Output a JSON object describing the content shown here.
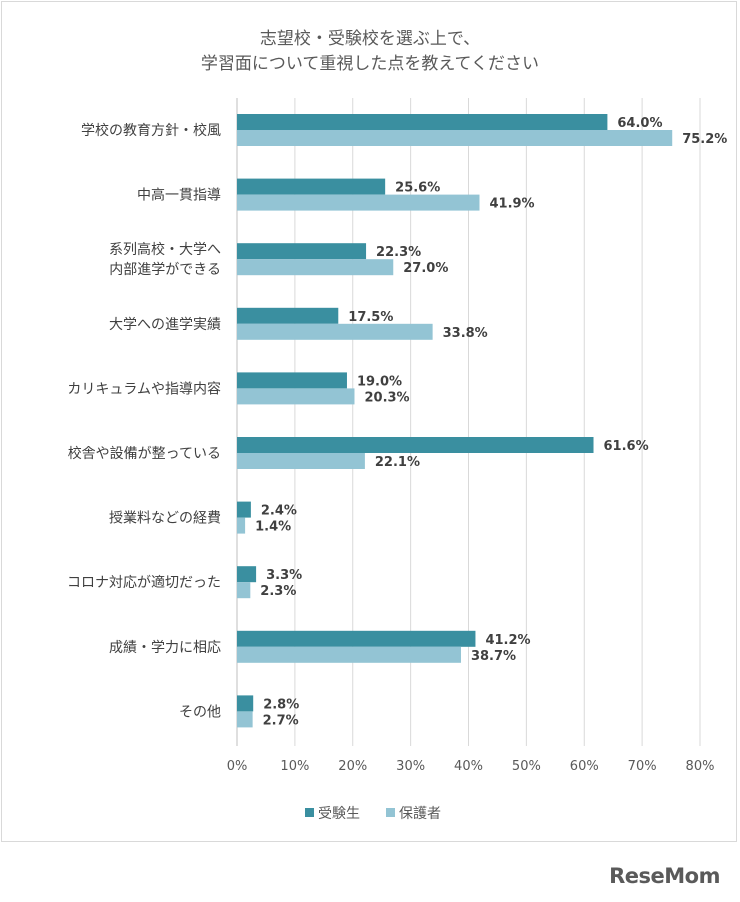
{
  "chart_data": {
    "type": "bar",
    "orientation": "horizontal",
    "title_lines": [
      "志望校・受験校を選ぶ上で、",
      "学習面について重視した点を教えてください"
    ],
    "categories": [
      [
        "学校の教育方針・校風"
      ],
      [
        "中高一貫指導"
      ],
      [
        "系列高校・大学へ",
        "内部進学ができる"
      ],
      [
        "大学への進学実績"
      ],
      [
        "カリキュラムや指導内容"
      ],
      [
        "校舎や設備が整っている"
      ],
      [
        "授業料などの経費"
      ],
      [
        "コロナ対応が適切だった"
      ],
      [
        "成績・学力に相応"
      ],
      [
        "その他"
      ]
    ],
    "series": [
      {
        "name": "受験生",
        "color": "#3a8fa0",
        "values": [
          64.0,
          25.6,
          22.3,
          17.5,
          19.0,
          61.6,
          2.4,
          3.3,
          41.2,
          2.8
        ],
        "labels": [
          "64.0%",
          "25.6%",
          "22.3%",
          "17.5%",
          "19.0%",
          "61.6%",
          "2.4%",
          "3.3%",
          "41.2%",
          "2.8%"
        ]
      },
      {
        "name": "保護者",
        "color": "#93c4d4",
        "values": [
          75.2,
          41.9,
          27.0,
          33.8,
          20.3,
          22.1,
          1.4,
          2.3,
          38.7,
          2.7
        ],
        "labels": [
          "75.2%",
          "41.9%",
          "27.0%",
          "33.8%",
          "20.3%",
          "22.1%",
          "1.4%",
          "2.3%",
          "38.7%",
          "2.7%"
        ]
      }
    ],
    "xlim": [
      0,
      80
    ],
    "x_ticks": [
      0,
      10,
      20,
      30,
      40,
      50,
      60,
      70,
      80
    ],
    "x_tick_labels": [
      "0%",
      "10%",
      "20%",
      "30%",
      "40%",
      "50%",
      "60%",
      "70%",
      "80%"
    ],
    "grid": true,
    "legend_position": "bottom"
  },
  "watermark": "ReseMom"
}
